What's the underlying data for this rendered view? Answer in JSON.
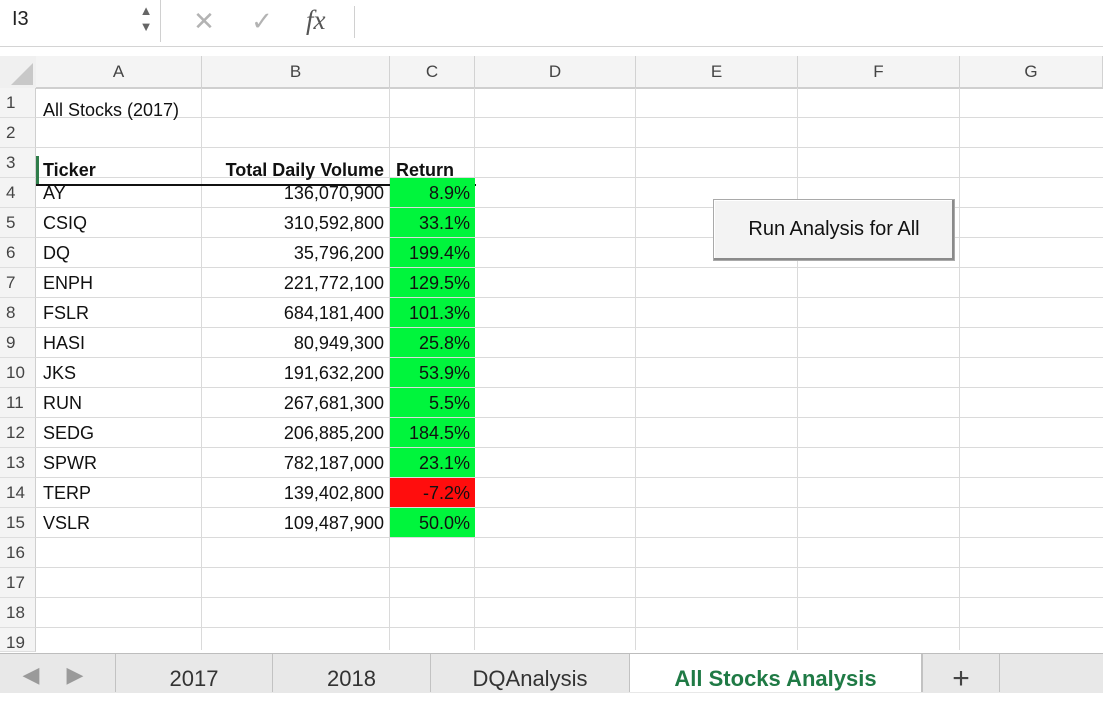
{
  "formula_bar": {
    "name_box": "I3",
    "stepper_up": "▲",
    "stepper_down": "▼",
    "cancel_glyph": "✕",
    "confirm_glyph": "✓",
    "fx_label": "fx",
    "formula": ""
  },
  "columns": [
    "A",
    "B",
    "C",
    "D",
    "E",
    "F",
    "G"
  ],
  "rows": [
    "1",
    "2",
    "3",
    "4",
    "5",
    "6",
    "7",
    "8",
    "9",
    "10",
    "11",
    "12",
    "13",
    "14",
    "15",
    "16",
    "17",
    "18",
    "19"
  ],
  "sheet": {
    "title": "All Stocks (2017)",
    "headers": {
      "ticker": "Ticker",
      "volume": "Total Daily Volume",
      "return": "Return"
    },
    "data": [
      {
        "ticker": "AY",
        "volume": "136,070,900",
        "return": "8.9%"
      },
      {
        "ticker": "CSIQ",
        "volume": "310,592,800",
        "return": "33.1%"
      },
      {
        "ticker": "DQ",
        "volume": "35,796,200",
        "return": "199.4%"
      },
      {
        "ticker": "ENPH",
        "volume": "221,772,100",
        "return": "129.5%"
      },
      {
        "ticker": "FSLR",
        "volume": "684,181,400",
        "return": "101.3%"
      },
      {
        "ticker": "HASI",
        "volume": "80,949,300",
        "return": "25.8%"
      },
      {
        "ticker": "JKS",
        "volume": "191,632,200",
        "return": "53.9%"
      },
      {
        "ticker": "RUN",
        "volume": "267,681,300",
        "return": "5.5%"
      },
      {
        "ticker": "SEDG",
        "volume": "206,885,200",
        "return": "184.5%"
      },
      {
        "ticker": "SPWR",
        "volume": "782,187,000",
        "return": "23.1%"
      },
      {
        "ticker": "TERP",
        "volume": "139,402,800",
        "return": "-7.2%"
      },
      {
        "ticker": "VSLR",
        "volume": "109,487,900",
        "return": "50.0%"
      }
    ]
  },
  "button": {
    "label": "Run Analysis for All"
  },
  "tabs": [
    {
      "label": "2017",
      "active": false
    },
    {
      "label": "2018",
      "active": false
    },
    {
      "label": "DQAnalysis",
      "active": false
    },
    {
      "label": "All Stocks Analysis",
      "active": true
    }
  ],
  "tab_add": "+",
  "tab_nav": {
    "prev": "◀",
    "next": "▶"
  },
  "colors": {
    "positive": "#00f53c",
    "negative": "#ff0d0d",
    "active_tab": "#1f7a45",
    "selection": "#2f7d4a"
  },
  "icons": {
    "cancel": "cancel-x-icon",
    "confirm": "confirm-check-icon",
    "function": "fx-icon",
    "add_sheet": "plus-icon"
  }
}
